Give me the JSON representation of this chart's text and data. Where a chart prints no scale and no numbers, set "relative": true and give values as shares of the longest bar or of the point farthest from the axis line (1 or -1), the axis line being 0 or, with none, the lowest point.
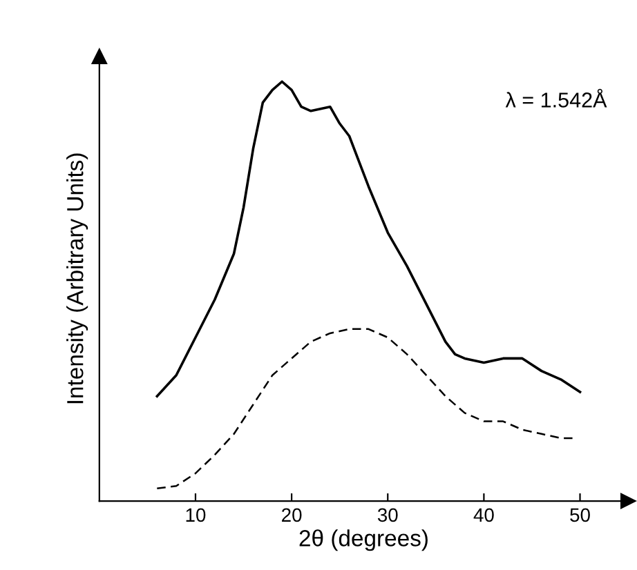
{
  "chart_data": {
    "type": "line",
    "relative": true,
    "xlabel": "2θ (degrees)",
    "ylabel": "Intensity (Arbitrary Units)",
    "annotations": [
      "λ = 1.542Å"
    ],
    "xlim": [
      0,
      55
    ],
    "xticks": [
      10,
      20,
      30,
      40,
      50
    ],
    "tick_labels": "x",
    "grid": false,
    "legend": false,
    "marker": "none",
    "series": [
      {
        "color": "#000000",
        "line_style": "solid",
        "x": [
          6,
          8,
          10,
          12,
          14,
          15,
          16,
          17,
          18,
          19,
          20,
          21,
          22,
          24,
          25,
          26,
          28,
          30,
          32,
          34,
          36,
          37,
          38,
          40,
          42,
          44,
          46,
          48,
          50
        ],
        "values": [
          0.25,
          0.3,
          0.39,
          0.48,
          0.59,
          0.7,
          0.84,
          0.95,
          0.98,
          1.0,
          0.98,
          0.94,
          0.93,
          0.94,
          0.9,
          0.87,
          0.75,
          0.64,
          0.56,
          0.47,
          0.38,
          0.35,
          0.34,
          0.33,
          0.34,
          0.34,
          0.31,
          0.29,
          0.26
        ]
      },
      {
        "color": "#000000",
        "line_style": "dashed",
        "x": [
          6,
          8,
          10,
          12,
          14,
          16,
          18,
          20,
          22,
          24,
          26,
          28,
          30,
          32,
          34,
          36,
          38,
          40,
          42,
          44,
          46,
          48,
          49.5
        ],
        "values": [
          0.03,
          0.036,
          0.066,
          0.11,
          0.16,
          0.23,
          0.3,
          0.34,
          0.38,
          0.4,
          0.41,
          0.41,
          0.39,
          0.35,
          0.3,
          0.25,
          0.21,
          0.19,
          0.19,
          0.17,
          0.16,
          0.15,
          0.15
        ]
      }
    ]
  }
}
